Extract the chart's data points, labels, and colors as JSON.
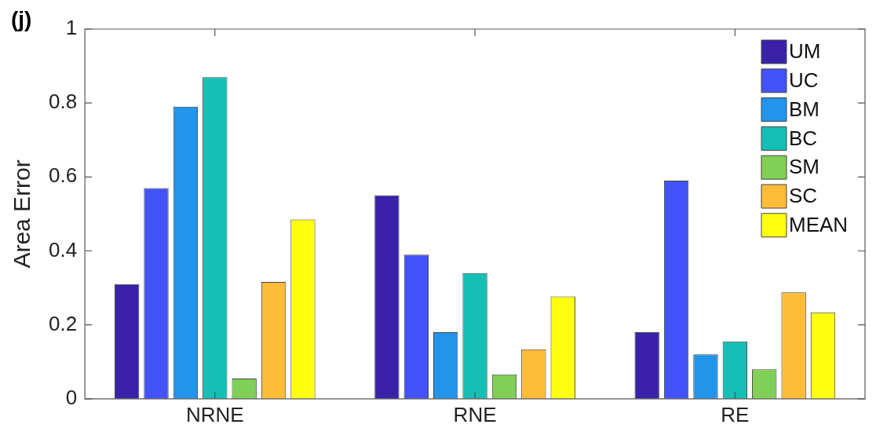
{
  "chart_data": {
    "type": "bar",
    "title": "(j)",
    "ylabel": "Area Error",
    "categories": [
      "NRNE",
      "RNE",
      "RE"
    ],
    "series": [
      {
        "name": "UM",
        "color": "#3a22a8",
        "values": [
          0.31,
          0.55,
          0.18
        ]
      },
      {
        "name": "UC",
        "color": "#4353fc",
        "values": [
          0.57,
          0.39,
          0.59
        ]
      },
      {
        "name": "BM",
        "color": "#2294ea",
        "values": [
          0.79,
          0.18,
          0.12
        ]
      },
      {
        "name": "BC",
        "color": "#14bfb5",
        "values": [
          0.87,
          0.34,
          0.155
        ]
      },
      {
        "name": "SM",
        "color": "#80cf57",
        "values": [
          0.055,
          0.066,
          0.08
        ]
      },
      {
        "name": "SC",
        "color": "#febc38",
        "values": [
          0.316,
          0.134,
          0.288
        ]
      },
      {
        "name": "MEAN",
        "color": "#ffff0f",
        "values": [
          0.485,
          0.277,
          0.234
        ]
      }
    ],
    "ylim": [
      0,
      1
    ],
    "yticks": [
      0,
      0.2,
      0.4,
      0.6,
      0.8,
      1
    ],
    "grid": false,
    "legend": "top right"
  }
}
